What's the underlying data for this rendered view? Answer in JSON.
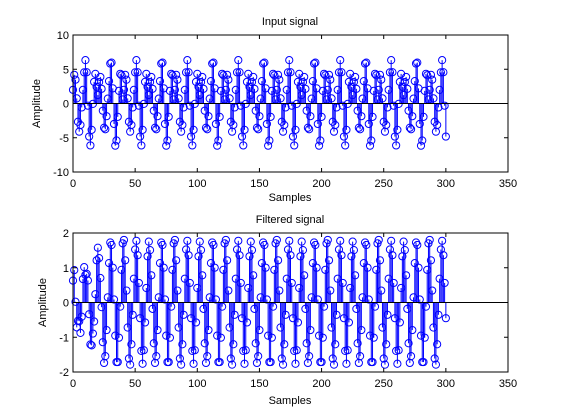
{
  "chart_data": [
    {
      "type": "stem",
      "title": "Input signal",
      "xlabel": "Samples",
      "ylabel": "Amplitude",
      "xlim": [
        0,
        350
      ],
      "ylim": [
        -10,
        10
      ],
      "xticks": [
        "0",
        "50",
        "100",
        "150",
        "200",
        "250",
        "300",
        "350"
      ],
      "yticks": [
        "-10",
        "-5",
        "0",
        "5",
        "10"
      ],
      "grid": false,
      "series_color": "#0000ff",
      "x_range": [
        0,
        300
      ],
      "period_samples": 20.5,
      "peak_amplitude": 6.7,
      "sample_values_one_period": [
        2.0,
        4.2,
        3.6,
        1.0,
        -2.5,
        -4.2,
        -3.5,
        -1.0,
        1.5,
        4.0,
        6.5,
        5.8,
        1.2,
        -4.0,
        -6.6,
        -5.2,
        -1.5,
        2.2,
        4.5,
        4.1,
        0.5
      ]
    },
    {
      "type": "stem",
      "title": "Filtered signal",
      "xlabel": "Samples",
      "ylabel": "Amplitude",
      "xlim": [
        0,
        350
      ],
      "ylim": [
        -2,
        2
      ],
      "xticks": [
        "0",
        "50",
        "100",
        "150",
        "200",
        "250",
        "300",
        "350"
      ],
      "yticks": [
        "-2",
        "-1",
        "0",
        "1",
        "2"
      ],
      "grid": false,
      "series_color": "#0000ff",
      "x_range": [
        0,
        300
      ],
      "period_samples": 10.25,
      "peak_amplitude": 1.85,
      "transient_samples": 25,
      "sample_values_one_period": [
        1.8,
        1.2,
        0.3,
        -0.8,
        -1.7,
        -1.8,
        -1.1,
        -0.2,
        0.9,
        1.7
      ]
    }
  ]
}
